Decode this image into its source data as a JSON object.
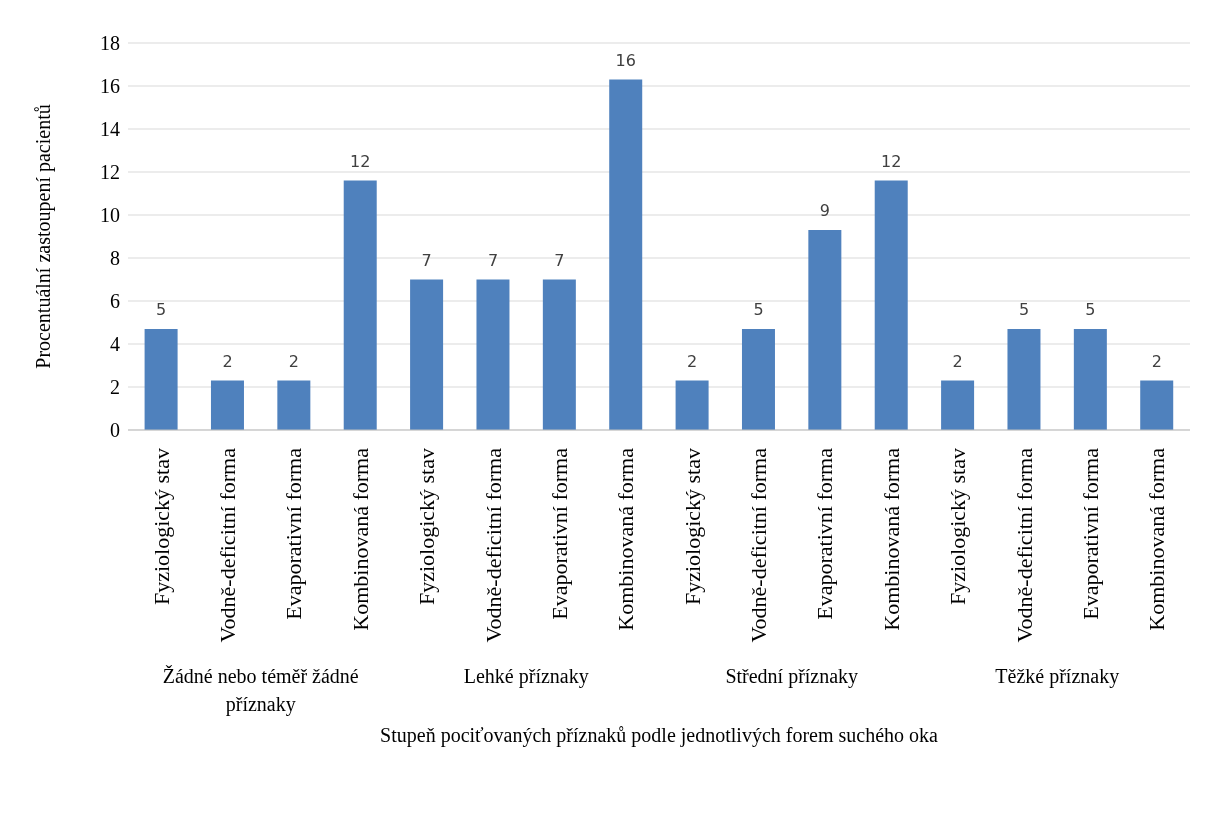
{
  "chart_data": {
    "type": "bar",
    "categories": [
      "Fyziologický stav",
      "Vodně-deficitní forma",
      "Evaporativní forma",
      "Kombinovaná forma",
      "Fyziologický stav",
      "Vodně-deficitní forma",
      "Evaporativní forma",
      "Kombinovaná forma",
      "Fyziologický stav",
      "Vodně-deficitní forma",
      "Evaporativní forma",
      "Kombinovaná forma",
      "Fyziologický stav",
      "Vodně-deficitní forma",
      "Evaporativní forma",
      "Kombinovaná forma"
    ],
    "values": [
      4.7,
      2.3,
      2.3,
      11.6,
      7.0,
      7.0,
      7.0,
      16.3,
      2.3,
      4.7,
      9.3,
      11.6,
      2.3,
      4.7,
      4.7,
      2.3
    ],
    "value_labels": [
      "5",
      "2",
      "2",
      "12",
      "7",
      "7",
      "7",
      "16",
      "2",
      "5",
      "9",
      "12",
      "2",
      "5",
      "5",
      "2"
    ],
    "color": "#4f81bd",
    "annotations": [
      "Žádné nebo téměř žádné příznaky",
      "Lehké příznaky",
      "Střední příznaky",
      "Těžké příznaky"
    ],
    "xlabel": "Stupeň pociťovaných příznaků podle jednotlivých forem suchého oka",
    "ylabel": "Procentuální zastoupení pacientů",
    "ylim": [
      0,
      18
    ],
    "yticks": [
      0,
      2,
      4,
      6,
      8,
      10,
      12,
      14,
      16,
      18
    ],
    "grid": "y"
  }
}
